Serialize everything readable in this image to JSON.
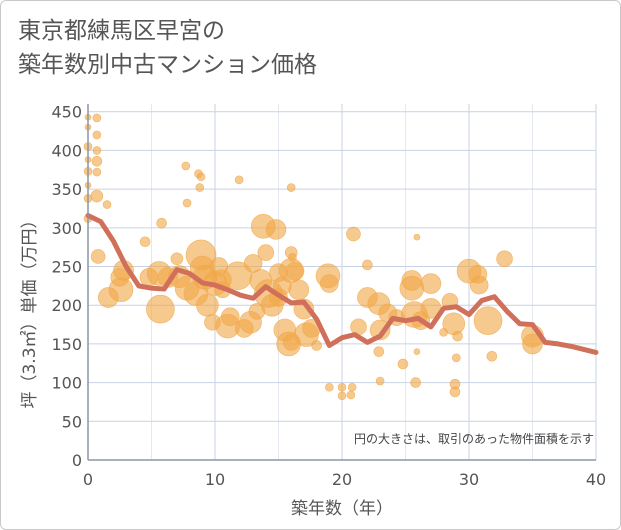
{
  "title": {
    "line1": "東京都練馬区早宮の",
    "line2": "築年数別中古マンション価格"
  },
  "note": "円の大きさは、取引のあった物件面積を示す",
  "colors": {
    "bubble": "#f0a848",
    "line": "#d0705a",
    "grid": "#c8d2e4",
    "plot_bg": "#ffffff"
  },
  "chart_data": {
    "type": "scatter",
    "xlabel": "築年数（年）",
    "ylabel": "坪（3.3㎡）単価（万円）",
    "xlim": [
      0,
      40
    ],
    "ylim": [
      0,
      460
    ],
    "xticks": [
      0,
      10,
      20,
      30,
      40
    ],
    "yticks": [
      0,
      50,
      100,
      150,
      200,
      250,
      300,
      350,
      400,
      450
    ],
    "grid": true,
    "trend": {
      "x": [
        0,
        1,
        2,
        3,
        4,
        5,
        6,
        7,
        8,
        9,
        10,
        11,
        12,
        13,
        14,
        15,
        16,
        17,
        18,
        19,
        20,
        21,
        22,
        23,
        24,
        25,
        26,
        27,
        28,
        29,
        30,
        31,
        32,
        33,
        34,
        35,
        36,
        37,
        38,
        39,
        40
      ],
      "y": [
        316,
        308,
        283,
        250,
        225,
        222,
        221,
        246,
        241,
        229,
        226,
        220,
        213,
        209,
        224,
        213,
        203,
        204,
        182,
        148,
        158,
        162,
        152,
        160,
        183,
        180,
        183,
        172,
        196,
        198,
        188,
        206,
        211,
        192,
        176,
        175,
        152,
        150,
        147,
        143,
        139
      ]
    },
    "bubbles": [
      {
        "x": 0,
        "y": 443,
        "s": 3
      },
      {
        "x": 0,
        "y": 430,
        "s": 3
      },
      {
        "x": 0,
        "y": 405,
        "s": 4
      },
      {
        "x": 0,
        "y": 388,
        "s": 3
      },
      {
        "x": 0,
        "y": 373,
        "s": 4
      },
      {
        "x": 0,
        "y": 355,
        "s": 3
      },
      {
        "x": 0,
        "y": 338,
        "s": 4
      },
      {
        "x": 0,
        "y": 312,
        "s": 4
      },
      {
        "x": 0.7,
        "y": 442,
        "s": 4
      },
      {
        "x": 0.7,
        "y": 420,
        "s": 4
      },
      {
        "x": 0.7,
        "y": 400,
        "s": 4
      },
      {
        "x": 0.7,
        "y": 386,
        "s": 5
      },
      {
        "x": 0.7,
        "y": 372,
        "s": 4
      },
      {
        "x": 0.7,
        "y": 341,
        "s": 6
      },
      {
        "x": 1.5,
        "y": 330,
        "s": 4
      },
      {
        "x": 0.8,
        "y": 263,
        "s": 7
      },
      {
        "x": 1.6,
        "y": 210,
        "s": 10
      },
      {
        "x": 2.5,
        "y": 236,
        "s": 9
      },
      {
        "x": 2.8,
        "y": 245,
        "s": 10
      },
      {
        "x": 2.6,
        "y": 220,
        "s": 12
      },
      {
        "x": 4.5,
        "y": 282,
        "s": 5
      },
      {
        "x": 4.8,
        "y": 236,
        "s": 9
      },
      {
        "x": 5.6,
        "y": 241,
        "s": 12
      },
      {
        "x": 5.7,
        "y": 195,
        "s": 14
      },
      {
        "x": 5.8,
        "y": 306,
        "s": 5
      },
      {
        "x": 6.3,
        "y": 236,
        "s": 10
      },
      {
        "x": 7.0,
        "y": 260,
        "s": 6
      },
      {
        "x": 7.2,
        "y": 237,
        "s": 11
      },
      {
        "x": 7.8,
        "y": 222,
        "s": 12
      },
      {
        "x": 7.7,
        "y": 380,
        "s": 4
      },
      {
        "x": 7.8,
        "y": 332,
        "s": 4
      },
      {
        "x": 8.5,
        "y": 215,
        "s": 12
      },
      {
        "x": 8.7,
        "y": 370,
        "s": 4
      },
      {
        "x": 8.9,
        "y": 366,
        "s": 4
      },
      {
        "x": 8.8,
        "y": 352,
        "s": 4
      },
      {
        "x": 8.9,
        "y": 265,
        "s": 15
      },
      {
        "x": 9.0,
        "y": 248,
        "s": 12
      },
      {
        "x": 9.2,
        "y": 236,
        "s": 12
      },
      {
        "x": 9.4,
        "y": 200,
        "s": 11
      },
      {
        "x": 9.8,
        "y": 178,
        "s": 8
      },
      {
        "x": 10.0,
        "y": 228,
        "s": 12
      },
      {
        "x": 10.3,
        "y": 250,
        "s": 9
      },
      {
        "x": 10.5,
        "y": 233,
        "s": 10
      },
      {
        "x": 10.6,
        "y": 220,
        "s": 8
      },
      {
        "x": 11.0,
        "y": 173,
        "s": 12
      },
      {
        "x": 11.2,
        "y": 185,
        "s": 9
      },
      {
        "x": 11.8,
        "y": 238,
        "s": 14
      },
      {
        "x": 11.9,
        "y": 362,
        "s": 4
      },
      {
        "x": 12.3,
        "y": 170,
        "s": 9
      },
      {
        "x": 12.8,
        "y": 178,
        "s": 11
      },
      {
        "x": 13.0,
        "y": 254,
        "s": 9
      },
      {
        "x": 13.3,
        "y": 192,
        "s": 8
      },
      {
        "x": 13.6,
        "y": 232,
        "s": 11
      },
      {
        "x": 13.8,
        "y": 302,
        "s": 12
      },
      {
        "x": 14.0,
        "y": 268,
        "s": 8
      },
      {
        "x": 14.2,
        "y": 215,
        "s": 14
      },
      {
        "x": 14.5,
        "y": 200,
        "s": 11
      },
      {
        "x": 14.8,
        "y": 298,
        "s": 10
      },
      {
        "x": 15.0,
        "y": 242,
        "s": 9
      },
      {
        "x": 15.0,
        "y": 210,
        "s": 9
      },
      {
        "x": 15.3,
        "y": 225,
        "s": 9
      },
      {
        "x": 15.5,
        "y": 168,
        "s": 11
      },
      {
        "x": 15.8,
        "y": 150,
        "s": 12
      },
      {
        "x": 16.0,
        "y": 152,
        "s": 8
      },
      {
        "x": 16.0,
        "y": 245,
        "s": 12
      },
      {
        "x": 16.0,
        "y": 268,
        "s": 6
      },
      {
        "x": 16.1,
        "y": 262,
        "s": 4
      },
      {
        "x": 16.0,
        "y": 352,
        "s": 4
      },
      {
        "x": 16.3,
        "y": 244,
        "s": 9
      },
      {
        "x": 16.6,
        "y": 220,
        "s": 10
      },
      {
        "x": 17.0,
        "y": 195,
        "s": 10
      },
      {
        "x": 17.2,
        "y": 162,
        "s": 12
      },
      {
        "x": 17.6,
        "y": 170,
        "s": 9
      },
      {
        "x": 18.0,
        "y": 148,
        "s": 5
      },
      {
        "x": 18.9,
        "y": 238,
        "s": 12
      },
      {
        "x": 19.0,
        "y": 228,
        "s": 9
      },
      {
        "x": 19.0,
        "y": 94,
        "s": 4
      },
      {
        "x": 20.0,
        "y": 94,
        "s": 4
      },
      {
        "x": 20.0,
        "y": 83,
        "s": 4
      },
      {
        "x": 20.7,
        "y": 84,
        "s": 4
      },
      {
        "x": 20.8,
        "y": 94,
        "s": 4
      },
      {
        "x": 20.9,
        "y": 292,
        "s": 7
      },
      {
        "x": 21.3,
        "y": 172,
        "s": 8
      },
      {
        "x": 22.0,
        "y": 210,
        "s": 10
      },
      {
        "x": 22.0,
        "y": 252,
        "s": 5
      },
      {
        "x": 22.9,
        "y": 202,
        "s": 11
      },
      {
        "x": 23.0,
        "y": 168,
        "s": 10
      },
      {
        "x": 22.9,
        "y": 140,
        "s": 5
      },
      {
        "x": 23.0,
        "y": 102,
        "s": 4
      },
      {
        "x": 23.6,
        "y": 190,
        "s": 9
      },
      {
        "x": 24.3,
        "y": 184,
        "s": 8
      },
      {
        "x": 24.8,
        "y": 124,
        "s": 5
      },
      {
        "x": 25.5,
        "y": 232,
        "s": 10
      },
      {
        "x": 25.5,
        "y": 222,
        "s": 12
      },
      {
        "x": 25.7,
        "y": 188,
        "s": 13
      },
      {
        "x": 25.8,
        "y": 100,
        "s": 5
      },
      {
        "x": 25.9,
        "y": 288,
        "s": 3
      },
      {
        "x": 25.9,
        "y": 140,
        "s": 3
      },
      {
        "x": 26.2,
        "y": 180,
        "s": 9
      },
      {
        "x": 27.0,
        "y": 228,
        "s": 10
      },
      {
        "x": 27.0,
        "y": 196,
        "s": 10
      },
      {
        "x": 28.0,
        "y": 165,
        "s": 4
      },
      {
        "x": 28.5,
        "y": 205,
        "s": 8
      },
      {
        "x": 28.8,
        "y": 176,
        "s": 11
      },
      {
        "x": 28.9,
        "y": 98,
        "s": 5
      },
      {
        "x": 28.9,
        "y": 88,
        "s": 5
      },
      {
        "x": 29.0,
        "y": 132,
        "s": 4
      },
      {
        "x": 29.1,
        "y": 160,
        "s": 5
      },
      {
        "x": 30.0,
        "y": 244,
        "s": 12
      },
      {
        "x": 30.7,
        "y": 240,
        "s": 9
      },
      {
        "x": 30.8,
        "y": 226,
        "s": 9
      },
      {
        "x": 31.5,
        "y": 180,
        "s": 14
      },
      {
        "x": 31.8,
        "y": 134,
        "s": 5
      },
      {
        "x": 32.8,
        "y": 260,
        "s": 8
      },
      {
        "x": 35.0,
        "y": 160,
        "s": 11
      },
      {
        "x": 35.0,
        "y": 150,
        "s": 10
      }
    ]
  }
}
